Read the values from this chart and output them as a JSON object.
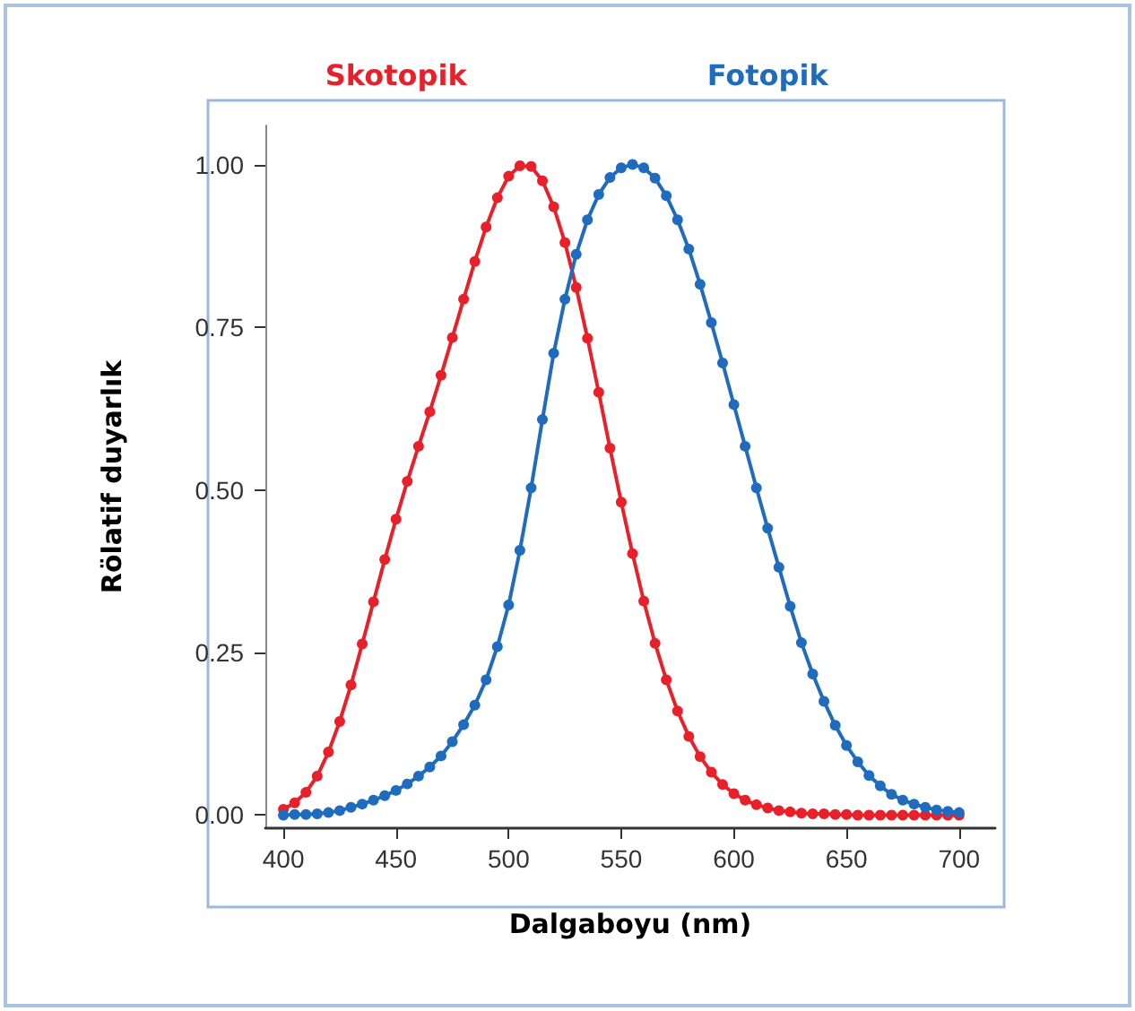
{
  "chart_data": {
    "type": "line",
    "xlabel": "Dalgaboyu (nm)",
    "ylabel": "Rölatif duyarlık",
    "x": [
      400,
      405,
      410,
      415,
      420,
      425,
      430,
      435,
      440,
      445,
      450,
      455,
      460,
      465,
      470,
      475,
      480,
      485,
      490,
      495,
      500,
      505,
      510,
      515,
      520,
      525,
      530,
      535,
      540,
      545,
      550,
      555,
      560,
      565,
      570,
      575,
      580,
      585,
      590,
      595,
      600,
      605,
      610,
      615,
      620,
      625,
      630,
      635,
      640,
      645,
      650,
      655,
      660,
      665,
      670,
      675,
      680,
      685,
      690,
      695,
      700
    ],
    "series": [
      {
        "name": "Skotopik",
        "color": "#e8202a",
        "values": [
          0.009,
          0.019,
          0.035,
          0.06,
          0.097,
          0.144,
          0.2,
          0.263,
          0.328,
          0.393,
          0.455,
          0.513,
          0.567,
          0.62,
          0.676,
          0.734,
          0.793,
          0.851,
          0.904,
          0.949,
          0.982,
          0.998,
          0.997,
          0.975,
          0.935,
          0.88,
          0.811,
          0.733,
          0.65,
          0.564,
          0.481,
          0.402,
          0.329,
          0.264,
          0.208,
          0.16,
          0.121,
          0.09,
          0.066,
          0.047,
          0.033,
          0.023,
          0.016,
          0.011,
          0.007,
          0.005,
          0.003,
          0.002,
          0.002,
          0.001,
          0.001,
          0,
          0,
          0,
          0,
          0,
          0,
          0,
          0,
          0,
          0
        ]
      },
      {
        "name": "Fotopik",
        "color": "#1f6cbf",
        "values": [
          0,
          0.001,
          0.001,
          0.002,
          0.004,
          0.007,
          0.012,
          0.017,
          0.023,
          0.03,
          0.038,
          0.048,
          0.06,
          0.074,
          0.091,
          0.113,
          0.139,
          0.169,
          0.208,
          0.259,
          0.323,
          0.407,
          0.503,
          0.608,
          0.71,
          0.793,
          0.862,
          0.915,
          0.954,
          0.98,
          0.995,
          1,
          0.995,
          0.979,
          0.952,
          0.915,
          0.87,
          0.816,
          0.757,
          0.695,
          0.631,
          0.567,
          0.503,
          0.441,
          0.381,
          0.321,
          0.265,
          0.217,
          0.175,
          0.138,
          0.107,
          0.082,
          0.061,
          0.045,
          0.032,
          0.023,
          0.017,
          0.012,
          0.008,
          0.006,
          0.004
        ]
      }
    ],
    "xlim": [
      392,
      716
    ],
    "xticks": [
      400,
      450,
      500,
      550,
      600,
      650,
      700
    ],
    "ylim": [
      -0.02,
      1.06
    ],
    "yticks": [
      {
        "value": 0,
        "label": "0.00"
      },
      {
        "value": 0.25,
        "label": "0.25"
      },
      {
        "value": 0.5,
        "label": "0.50"
      },
      {
        "value": 0.75,
        "label": "0.75"
      },
      {
        "value": 1,
        "label": "1.00"
      }
    ],
    "grid": false,
    "legend": false,
    "marker": "circle",
    "line_style": "solid"
  }
}
